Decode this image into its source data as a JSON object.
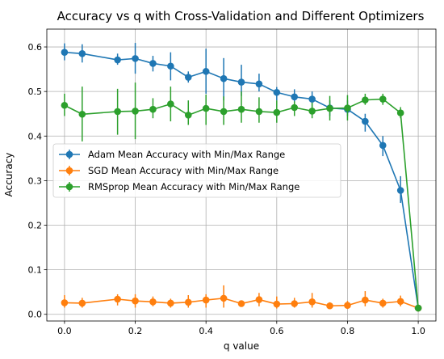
{
  "chart_data": {
    "type": "line",
    "title": "Accuracy vs q with Cross-Validation and Different Optimizers",
    "xlabel": "q value",
    "ylabel": "Accuracy",
    "xlim": [
      -0.05,
      1.05
    ],
    "ylim": [
      -0.015,
      0.64
    ],
    "xticks": [
      0.0,
      0.2,
      0.4,
      0.6,
      0.8,
      1.0
    ],
    "xtick_labels": [
      "0.0",
      "0.2",
      "0.4",
      "0.6",
      "0.8",
      "1.0"
    ],
    "yticks": [
      0.0,
      0.1,
      0.2,
      0.3,
      0.4,
      0.5,
      0.6
    ],
    "ytick_labels": [
      "0.0",
      "0.1",
      "0.2",
      "0.3",
      "0.4",
      "0.5",
      "0.6"
    ],
    "grid": true,
    "legend_position": "center-left",
    "x": [
      0.0,
      0.05,
      0.15,
      0.2,
      0.25,
      0.3,
      0.35,
      0.4,
      0.45,
      0.5,
      0.55,
      0.6,
      0.65,
      0.7,
      0.75,
      0.8,
      0.85,
      0.9,
      0.95,
      1.0
    ],
    "series": [
      {
        "name": "Adam Mean Accuracy with Min/Max Range",
        "color": "#1f77b4",
        "values": [
          0.588,
          0.585,
          0.571,
          0.574,
          0.563,
          0.557,
          0.532,
          0.545,
          0.529,
          0.521,
          0.517,
          0.498,
          0.488,
          0.483,
          0.463,
          0.46,
          0.433,
          0.379,
          0.278,
          0.014
        ],
        "min": [
          0.57,
          0.565,
          0.56,
          0.54,
          0.545,
          0.525,
          0.52,
          0.495,
          0.48,
          0.49,
          0.5,
          0.48,
          0.47,
          0.465,
          0.445,
          0.445,
          0.41,
          0.355,
          0.25,
          0.012
        ],
        "max": [
          0.608,
          0.606,
          0.585,
          0.609,
          0.58,
          0.588,
          0.545,
          0.596,
          0.575,
          0.56,
          0.54,
          0.51,
          0.505,
          0.5,
          0.48,
          0.48,
          0.45,
          0.4,
          0.31,
          0.016
        ]
      },
      {
        "name": "SGD Mean Accuracy with Min/Max Range",
        "color": "#ff7f0e",
        "values": [
          0.026,
          0.025,
          0.034,
          0.03,
          0.028,
          0.025,
          0.027,
          0.032,
          0.036,
          0.024,
          0.033,
          0.023,
          0.024,
          0.028,
          0.019,
          0.02,
          0.032,
          0.025,
          0.029,
          0.014
        ],
        "min": [
          0.015,
          0.015,
          0.02,
          0.015,
          0.018,
          0.015,
          0.015,
          0.015,
          0.015,
          0.018,
          0.018,
          0.013,
          0.015,
          0.015,
          0.013,
          0.012,
          0.018,
          0.015,
          0.018,
          0.012
        ],
        "max": [
          0.043,
          0.037,
          0.045,
          0.045,
          0.04,
          0.035,
          0.043,
          0.045,
          0.065,
          0.03,
          0.048,
          0.04,
          0.037,
          0.048,
          0.027,
          0.03,
          0.052,
          0.035,
          0.042,
          0.016
        ]
      },
      {
        "name": "RMSprop Mean Accuracy with Min/Max Range",
        "color": "#2ca02c",
        "values": [
          0.469,
          0.449,
          0.455,
          0.456,
          0.46,
          0.472,
          0.447,
          0.462,
          0.455,
          0.46,
          0.455,
          0.453,
          0.464,
          0.456,
          0.462,
          0.463,
          0.481,
          0.483,
          0.452,
          0.014
        ],
        "min": [
          0.445,
          0.388,
          0.403,
          0.393,
          0.44,
          0.433,
          0.425,
          0.425,
          0.425,
          0.43,
          0.43,
          0.43,
          0.445,
          0.44,
          0.435,
          0.435,
          0.47,
          0.47,
          0.44,
          0.012
        ],
        "max": [
          0.495,
          0.511,
          0.506,
          0.52,
          0.485,
          0.511,
          0.48,
          0.493,
          0.489,
          0.5,
          0.487,
          0.48,
          0.478,
          0.475,
          0.49,
          0.492,
          0.495,
          0.495,
          0.465,
          0.016
        ]
      }
    ]
  }
}
